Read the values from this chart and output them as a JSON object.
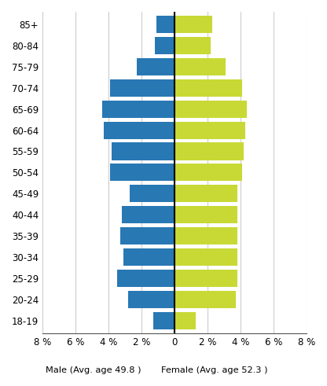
{
  "age_groups": [
    "18-19",
    "20-24",
    "25-29",
    "30-34",
    "35-39",
    "40-44",
    "45-49",
    "50-54",
    "55-59",
    "60-64",
    "65-69",
    "70-74",
    "75-79",
    "80-84",
    "85+"
  ],
  "male": [
    1.3,
    2.8,
    3.5,
    3.1,
    3.3,
    3.2,
    2.7,
    3.9,
    3.8,
    4.3,
    4.4,
    3.9,
    2.3,
    1.2,
    1.1
  ],
  "female": [
    1.3,
    3.7,
    3.8,
    3.8,
    3.8,
    3.8,
    3.8,
    4.1,
    4.2,
    4.3,
    4.4,
    4.1,
    3.1,
    2.2,
    2.3
  ],
  "male_color": "#2878b4",
  "female_color": "#c8d935",
  "male_label": "Male (Avg. age 49.8 )",
  "female_label": "Female (Avg. age 52.3 )",
  "xlim": 8,
  "xticks": [
    -8,
    -6,
    -4,
    -2,
    0,
    2,
    4,
    6,
    8
  ],
  "xticklabels": [
    "8 %",
    "6 %",
    "4 %",
    "2 %",
    "0",
    "2 %",
    "4 %",
    "6 %",
    "8 %"
  ],
  "grid_color": "#cccccc",
  "bar_height": 0.82,
  "background_color": "#ffffff"
}
